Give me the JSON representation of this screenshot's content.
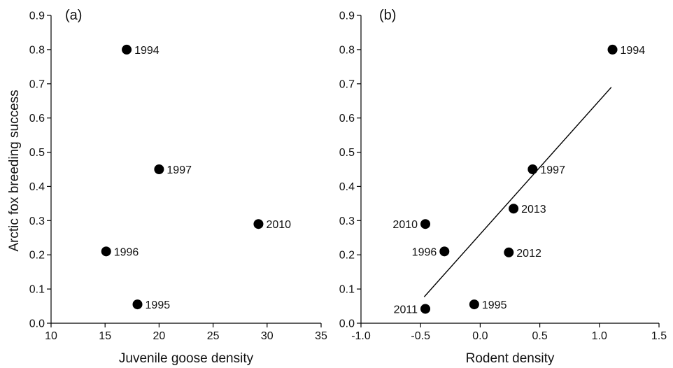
{
  "chart_data": [
    {
      "type": "scatter",
      "panel_label": "(a)",
      "xlabel": "Juvenile goose density",
      "ylabel": "Arctic fox breeding success",
      "xlim": [
        10,
        35
      ],
      "ylim": [
        0,
        0.9
      ],
      "xticks": [
        "10",
        "15",
        "20",
        "25",
        "30",
        "35"
      ],
      "yticks": [
        "0.0",
        "0.1",
        "0.2",
        "0.3",
        "0.4",
        "0.5",
        "0.6",
        "0.7",
        "0.8",
        "0.9"
      ],
      "grid": false,
      "points": [
        {
          "x": 17.0,
          "y": 0.8,
          "label": "1994",
          "label_side": "right"
        },
        {
          "x": 20.0,
          "y": 0.45,
          "label": "1997",
          "label_side": "right"
        },
        {
          "x": 29.2,
          "y": 0.29,
          "label": "2010",
          "label_side": "right"
        },
        {
          "x": 15.1,
          "y": 0.21,
          "label": "1996",
          "label_side": "right"
        },
        {
          "x": 18.0,
          "y": 0.055,
          "label": "1995",
          "label_side": "right"
        }
      ]
    },
    {
      "type": "scatter",
      "panel_label": "(b)",
      "xlabel": "Rodent density",
      "ylabel": "",
      "xlim": [
        -1.0,
        1.5
      ],
      "ylim": [
        0,
        0.9
      ],
      "xticks": [
        "-1.0",
        "-0.5",
        "0.0",
        "0.5",
        "1.0",
        "1.5"
      ],
      "yticks": [
        "0.0",
        "0.1",
        "0.2",
        "0.3",
        "0.4",
        "0.5",
        "0.6",
        "0.7",
        "0.8",
        "0.9"
      ],
      "grid": false,
      "points": [
        {
          "x": 1.11,
          "y": 0.8,
          "label": "1994",
          "label_side": "right"
        },
        {
          "x": 0.44,
          "y": 0.45,
          "label": "1997",
          "label_side": "right"
        },
        {
          "x": 0.28,
          "y": 0.335,
          "label": "2013",
          "label_side": "right"
        },
        {
          "x": -0.46,
          "y": 0.29,
          "label": "2010",
          "label_side": "left"
        },
        {
          "x": -0.3,
          "y": 0.21,
          "label": "1996",
          "label_side": "left"
        },
        {
          "x": 0.24,
          "y": 0.207,
          "label": "2012",
          "label_side": "right"
        },
        {
          "x": -0.05,
          "y": 0.055,
          "label": "1995",
          "label_side": "right"
        },
        {
          "x": -0.46,
          "y": 0.042,
          "label": "2011",
          "label_side": "left"
        }
      ],
      "fit_line": {
        "x": [
          -0.47,
          1.1
        ],
        "y": [
          0.077,
          0.69
        ]
      }
    }
  ]
}
